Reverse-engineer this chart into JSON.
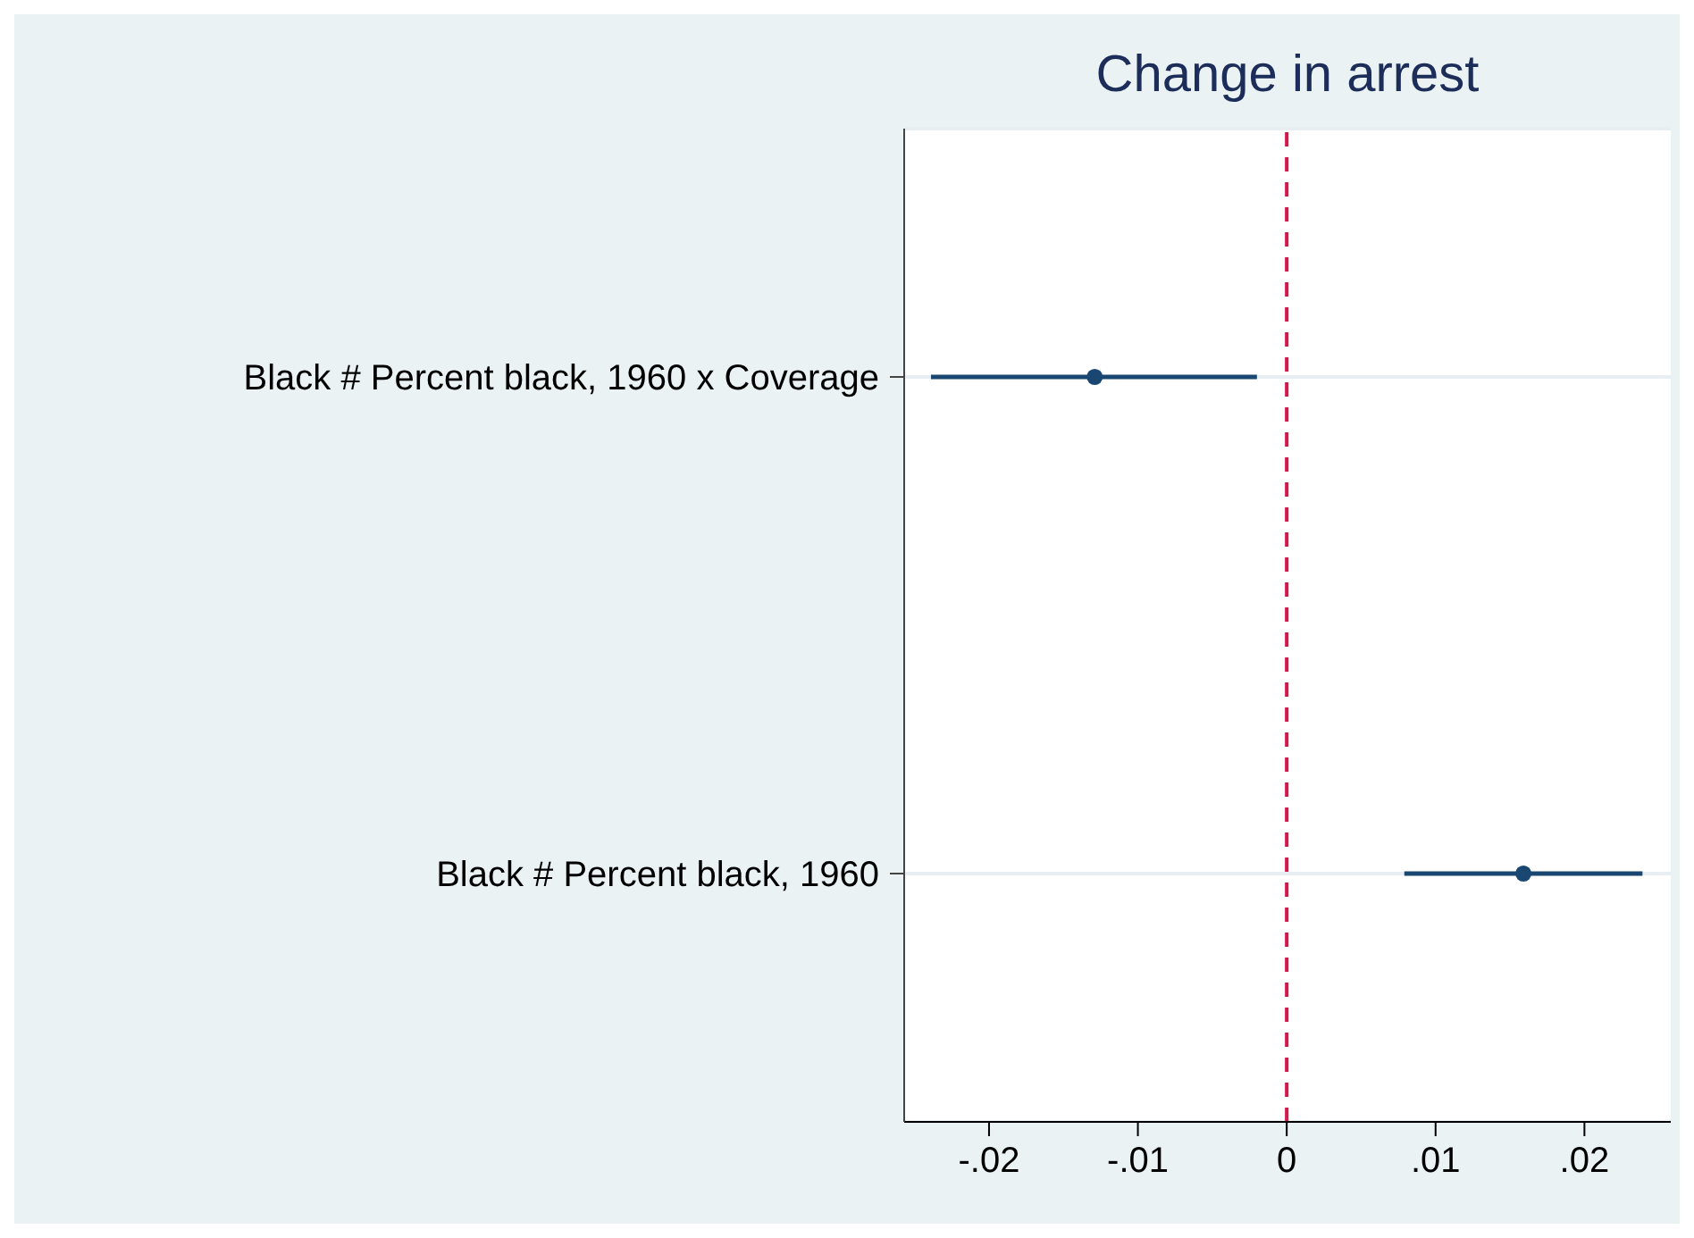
{
  "chart_data": {
    "type": "scatter",
    "title": "Change in arrest",
    "orientation": "horizontal",
    "categories": [
      "Black # Percent black, 1960 x Coverage",
      "Black # Percent black, 1960"
    ],
    "series": [
      {
        "color": "#1a4672",
        "values": [
          -0.0129,
          0.0159
        ],
        "errors": [
          [
            -0.0239,
            -0.002
          ],
          [
            0.0079,
            0.0239
          ]
        ]
      }
    ],
    "xlim": [
      -0.0257,
      0.0258
    ],
    "xticks": [
      {
        "value": -0.02,
        "label": "-.02"
      },
      {
        "value": -0.01,
        "label": "-.01"
      },
      0,
      {
        "value": 0.01,
        "label": ".01"
      },
      {
        "value": 0.02,
        "label": ".02"
      }
    ],
    "ref_lines": [
      {
        "axis": "x",
        "value": 0,
        "color": "#d6174a",
        "line_style": "dashed"
      }
    ],
    "grid": "y",
    "marker": "circle"
  }
}
